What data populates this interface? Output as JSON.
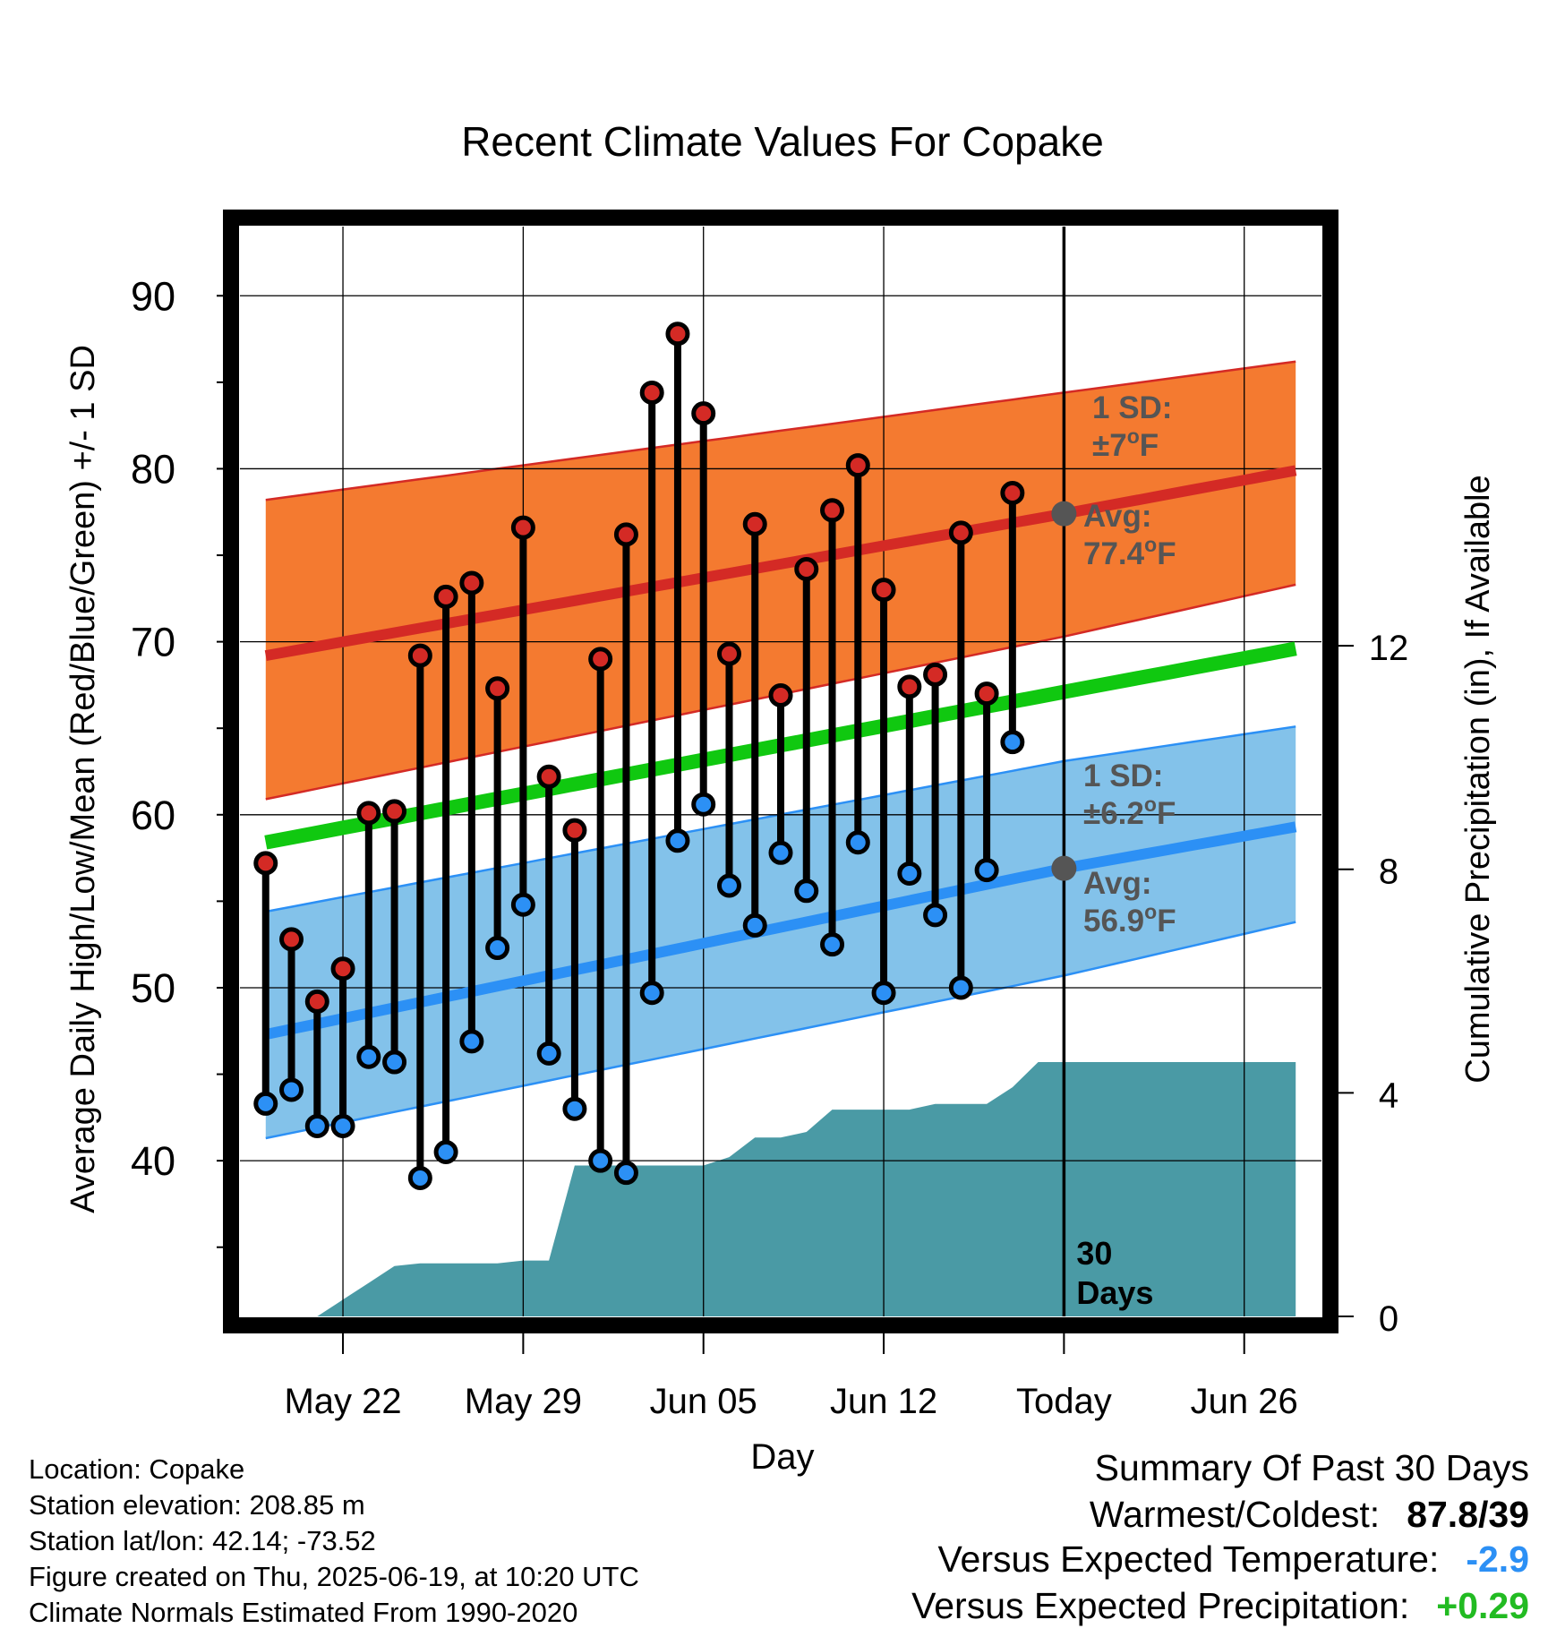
{
  "chart_data": {
    "type": "line",
    "title": "Recent Climate Values For Copake",
    "xlabel": "Day",
    "ylabel": "Average Daily High/Low/Mean (Red/Blue/Green) +/- 1 SD",
    "y2label": "Cumulative Precipitation (in), If Available",
    "ylim": [
      31,
      94
    ],
    "y2lim": [
      0,
      19.5
    ],
    "xlim": [
      "2025-05-18",
      "2025-06-29"
    ],
    "yticks": [
      40,
      50,
      60,
      70,
      80,
      90
    ],
    "y2ticks": [
      0,
      4,
      8,
      12
    ],
    "x_ticks": [
      {
        "date": "2025-05-22",
        "label": "May 22"
      },
      {
        "date": "2025-05-29",
        "label": "May 29"
      },
      {
        "date": "2025-06-05",
        "label": "Jun 05"
      },
      {
        "date": "2025-06-12",
        "label": "Jun 12"
      },
      {
        "date": "2025-06-19",
        "label": "Today"
      },
      {
        "date": "2025-06-26",
        "label": "Jun 26"
      }
    ],
    "grid": true,
    "today": "2025-06-19",
    "window_label": "30 Days",
    "normals": {
      "dates": [
        "2025-05-19",
        "2025-06-19",
        "2025-06-28"
      ],
      "high_avg": [
        69.2,
        77.4,
        79.9
      ],
      "high_upper": [
        78.2,
        84.4,
        86.2
      ],
      "high_lower": [
        60.9,
        70.3,
        73.3
      ],
      "mean_avg": [
        58.4,
        67.1,
        69.6
      ],
      "low_avg": [
        47.3,
        56.9,
        59.3
      ],
      "low_upper": [
        54.4,
        63.1,
        65.1
      ],
      "low_lower": [
        41.3,
        50.7,
        53.8
      ]
    },
    "daily": {
      "dates": [
        "2025-05-19",
        "2025-05-20",
        "2025-05-21",
        "2025-05-22",
        "2025-05-23",
        "2025-05-24",
        "2025-05-25",
        "2025-05-26",
        "2025-05-27",
        "2025-05-28",
        "2025-05-29",
        "2025-05-30",
        "2025-05-31",
        "2025-06-01",
        "2025-06-02",
        "2025-06-03",
        "2025-06-04",
        "2025-06-05",
        "2025-06-06",
        "2025-06-07",
        "2025-06-08",
        "2025-06-09",
        "2025-06-10",
        "2025-06-11",
        "2025-06-12",
        "2025-06-13",
        "2025-06-14",
        "2025-06-15",
        "2025-06-16",
        "2025-06-17",
        "2025-06-18"
      ],
      "high": [
        57.2,
        52.8,
        49.2,
        51.1,
        60.1,
        60.2,
        69.2,
        72.6,
        73.4,
        67.3,
        76.6,
        62.2,
        59.1,
        69.0,
        76.2,
        84.4,
        87.8,
        83.2,
        69.3,
        76.8,
        66.9,
        74.2,
        77.6,
        80.2,
        73.0,
        67.4,
        68.1,
        76.3,
        67.0,
        78.6,
        null
      ],
      "low": [
        43.3,
        44.1,
        42.0,
        42.0,
        46.0,
        45.7,
        39.0,
        40.5,
        46.9,
        52.3,
        54.8,
        46.2,
        43.0,
        40.0,
        39.3,
        49.7,
        58.5,
        60.6,
        55.9,
        53.6,
        57.8,
        55.6,
        52.5,
        58.4,
        49.7,
        56.6,
        54.2,
        50.0,
        56.8,
        64.2,
        null
      ]
    },
    "precip": {
      "dates": [
        "2025-05-19",
        "2025-05-21",
        "2025-05-22",
        "2025-05-23",
        "2025-05-24",
        "2025-05-25",
        "2025-05-26",
        "2025-05-27",
        "2025-05-28",
        "2025-05-29",
        "2025-05-30",
        "2025-05-31",
        "2025-06-01",
        "2025-06-02",
        "2025-06-03",
        "2025-06-04",
        "2025-06-05",
        "2025-06-06",
        "2025-06-07",
        "2025-06-08",
        "2025-06-09",
        "2025-06-10",
        "2025-06-11",
        "2025-06-12",
        "2025-06-13",
        "2025-06-14",
        "2025-06-15",
        "2025-06-16",
        "2025-06-17",
        "2025-06-18",
        "2025-06-19",
        "2025-06-28"
      ],
      "values": [
        0.0,
        0.0,
        0.3,
        0.6,
        0.9,
        0.95,
        0.95,
        0.95,
        0.95,
        1.0,
        1.0,
        2.7,
        2.7,
        2.7,
        2.7,
        2.7,
        2.7,
        2.85,
        3.2,
        3.2,
        3.3,
        3.7,
        3.7,
        3.7,
        3.7,
        3.8,
        3.8,
        3.8,
        4.1,
        4.55,
        4.55,
        4.55
      ]
    },
    "annotations": {
      "high_sd": {
        "line1": "1 SD:",
        "line2": "±7",
        "unit": "F"
      },
      "high_avg": {
        "line1": "Avg:",
        "line2": "77.4",
        "unit": "F",
        "value": 77.4
      },
      "low_sd": {
        "line1": "1 SD:",
        "line2": "±6.2",
        "unit": "F"
      },
      "low_avg": {
        "line1": "Avg:",
        "line2": "56.9",
        "unit": "F",
        "value": 56.9
      },
      "degree": "o"
    },
    "colors": {
      "high_band": "#f47a30",
      "high_line": "#d42a25",
      "mean_line": "#10c810",
      "low_band": "#83c2ea",
      "low_line": "#2c90f5",
      "precip_fill": "#4a9aa5",
      "high_dot": "#d42a25",
      "low_dot": "#2c90f5",
      "annotation": "#555555",
      "avg_marker": "#555555"
    }
  },
  "info": {
    "location": "Location: Copake",
    "elevation": "Station elevation: 208.85 m",
    "latlon": "Station lat/lon: 42.14; -73.52",
    "created": "Figure created on Thu, 2025-06-19, at 10:20 UTC",
    "normals": "Climate Normals Estimated From 1990-2020"
  },
  "summary": {
    "title": "Summary Of Past 30 Days",
    "warmest_label": "Warmest/Coldest:",
    "warmest_value": "87.8/39",
    "temp_label": "Versus Expected Temperature:",
    "temp_value": "-2.9",
    "temp_color": "#2c90f5",
    "precip_label": "Versus Expected Precipitation:",
    "precip_value": "+0.29",
    "precip_color": "#22bb22"
  }
}
